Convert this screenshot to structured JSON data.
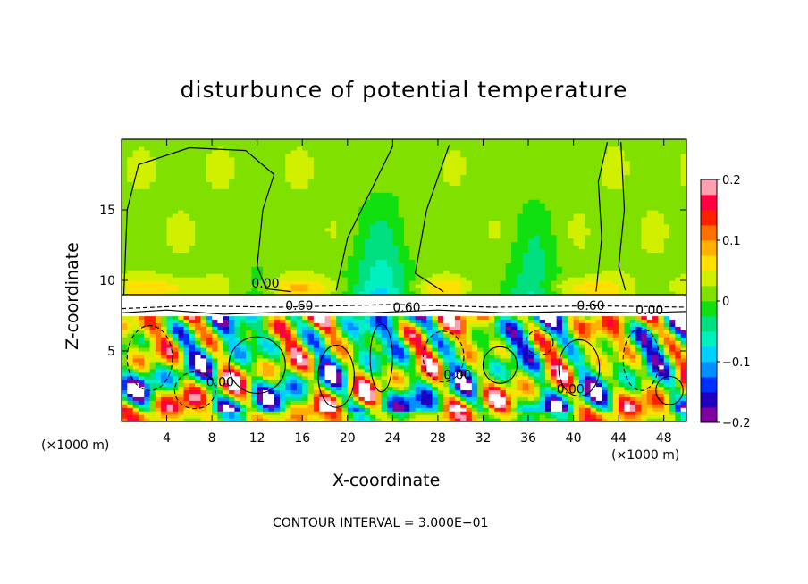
{
  "chart_data": {
    "type": "heatmap",
    "title": "disturbunce of potential temperature",
    "xlabel": "X-coordinate",
    "ylabel": "Z-coordinate",
    "x_unit": "(×1000 m)",
    "x_unit_right": "(×1000 m)",
    "xlim": [
      0,
      50
    ],
    "ylim": [
      0,
      20
    ],
    "x_ticks": [
      4,
      8,
      12,
      16,
      20,
      24,
      28,
      32,
      36,
      40,
      44,
      48
    ],
    "y_ticks": [
      5,
      10,
      15
    ],
    "colorbar": {
      "range": [
        -0.2,
        0.2
      ],
      "tick_values": [
        0.2,
        0.1,
        0,
        -0.1,
        -0.2
      ],
      "tick_labels": [
        "0.2",
        "0.1",
        "0",
        "−0.1",
        "−0.2"
      ],
      "colors": [
        "#8000a0",
        "#2000c0",
        "#0030ff",
        "#0090ff",
        "#00d0ff",
        "#00f0c0",
        "#00e080",
        "#10e010",
        "#80e000",
        "#d0f000",
        "#ffe000",
        "#ffb000",
        "#ff7000",
        "#ff2000",
        "#ff0040",
        "#ffa0b0"
      ]
    },
    "contour_labels": [
      {
        "x": 11.5,
        "z": 9.5,
        "text": "0.00"
      },
      {
        "x": 14.5,
        "z": 7.9,
        "text": "0.60"
      },
      {
        "x": 24.0,
        "z": 7.8,
        "text": "0.60"
      },
      {
        "x": 40.3,
        "z": 7.9,
        "text": "0.60"
      },
      {
        "x": 45.5,
        "z": 7.6,
        "text": "0.00"
      },
      {
        "x": 7.5,
        "z": 2.5,
        "text": "0.00"
      },
      {
        "x": 28.5,
        "z": 3.0,
        "text": "0.00"
      },
      {
        "x": 38.5,
        "z": 2.0,
        "text": "0.00"
      }
    ],
    "contour_interval": "CONTOUR INTERVAL = 3.000E−01",
    "fields": {
      "upper_layer": "mostly 0 to +0.03 (green), negative plumes near x=23 and x=36 above z=9",
      "inversion_z": 9,
      "lower_layer": "turbulent cells alternating about −0.2 to +0.2 below z=8"
    }
  }
}
